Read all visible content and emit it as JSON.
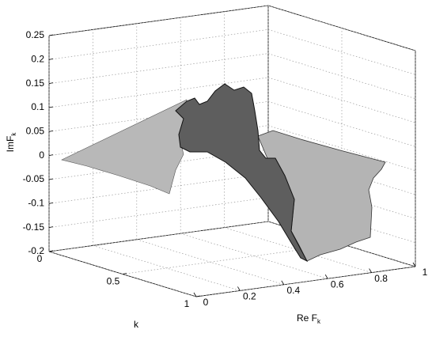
{
  "chart_data": {
    "type": "surface",
    "xlabel": {
      "text": "Re F",
      "subscript": "k"
    },
    "ylabel": "k",
    "zlabel": {
      "text": "ImF",
      "subscript": "k"
    },
    "xlim": [
      0,
      1
    ],
    "xticks": [
      0,
      0.2,
      0.4,
      0.6,
      0.8,
      1
    ],
    "ylim": [
      0,
      1
    ],
    "yticks": [
      0,
      0.5,
      1
    ],
    "zlim": [
      -0.2,
      0.25
    ],
    "zticks": [
      -0.2,
      -0.15,
      -0.1,
      -0.05,
      0,
      0.05,
      0.1,
      0.15,
      0.2,
      0.25
    ],
    "grid": true
  }
}
